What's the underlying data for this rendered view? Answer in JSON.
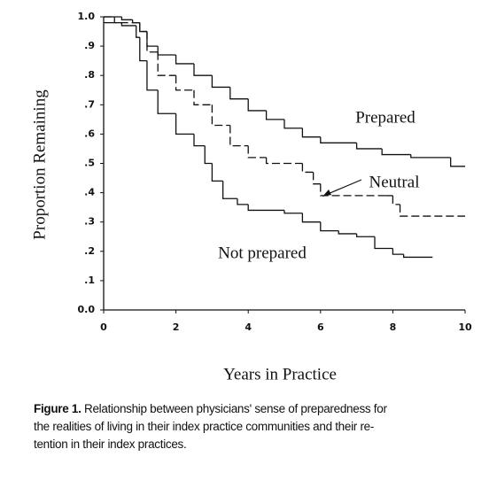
{
  "chart_data": {
    "type": "line",
    "step": true,
    "ylabel": "Proportion Remaining",
    "xlabel": "Years in Practice",
    "xlim": [
      0,
      10
    ],
    "xticks": [
      0,
      2,
      4,
      6,
      8,
      10
    ],
    "ylim": [
      0,
      1
    ],
    "yticks": [
      {
        "value": 0,
        "label": "0.0"
      },
      {
        "value": 0.1,
        "label": ".1"
      },
      {
        "value": 0.2,
        "label": ".2"
      },
      {
        "value": 0.3,
        "label": ".3"
      },
      {
        "value": 0.4,
        "label": ".4"
      },
      {
        "value": 0.5,
        "label": ".5"
      },
      {
        "value": 0.6,
        "label": ".6"
      },
      {
        "value": 0.7,
        "label": ".7"
      },
      {
        "value": 0.8,
        "label": ".8"
      },
      {
        "value": 0.9,
        "label": ".9"
      },
      {
        "value": 1,
        "label": "1.0"
      }
    ],
    "grid": false,
    "series": [
      {
        "name": "Prepared",
        "color": "#111111",
        "line_style": "solid",
        "x": [
          0,
          0.5,
          0.8,
          1.0,
          1.2,
          1.5,
          2.0,
          2.5,
          3.0,
          3.5,
          4.0,
          4.5,
          5.0,
          5.5,
          6.0,
          7.0,
          7.7,
          8.5,
          9.6,
          10
        ],
        "values": [
          1.0,
          0.99,
          0.98,
          0.95,
          0.9,
          0.87,
          0.84,
          0.8,
          0.76,
          0.72,
          0.68,
          0.65,
          0.62,
          0.59,
          0.57,
          0.55,
          0.53,
          0.52,
          0.49,
          0.49
        ]
      },
      {
        "name": "Neutral",
        "color": "#111111",
        "line_style": "dashed",
        "x": [
          0,
          0.3,
          1.0,
          1.2,
          1.5,
          2.0,
          2.5,
          3.0,
          3.5,
          4.0,
          4.5,
          5.5,
          5.8,
          6.0,
          7.8,
          8.0,
          8.2,
          10
        ],
        "values": [
          1.0,
          0.98,
          0.95,
          0.88,
          0.8,
          0.75,
          0.7,
          0.63,
          0.56,
          0.52,
          0.5,
          0.47,
          0.43,
          0.39,
          0.39,
          0.36,
          0.32,
          0.32
        ]
      },
      {
        "name": "Not prepared",
        "color": "#111111",
        "line_style": "solid",
        "x": [
          0,
          0.5,
          0.9,
          1.0,
          1.2,
          1.5,
          2.0,
          2.5,
          2.8,
          3.0,
          3.3,
          3.7,
          4.0,
          5.0,
          5.5,
          6.0,
          6.5,
          7.0,
          7.5,
          8.0,
          8.3,
          9.1
        ],
        "values": [
          0.98,
          0.97,
          0.93,
          0.85,
          0.75,
          0.67,
          0.6,
          0.56,
          0.5,
          0.44,
          0.38,
          0.36,
          0.34,
          0.33,
          0.3,
          0.27,
          0.26,
          0.25,
          0.21,
          0.19,
          0.18,
          0.18
        ]
      }
    ]
  },
  "caption": {
    "label": "Figure 1.",
    "lines": [
      "Relationship between physicians' sense of preparedness for",
      "the realities of living in their index practice communities and their re-",
      "tention in their index practices."
    ]
  }
}
